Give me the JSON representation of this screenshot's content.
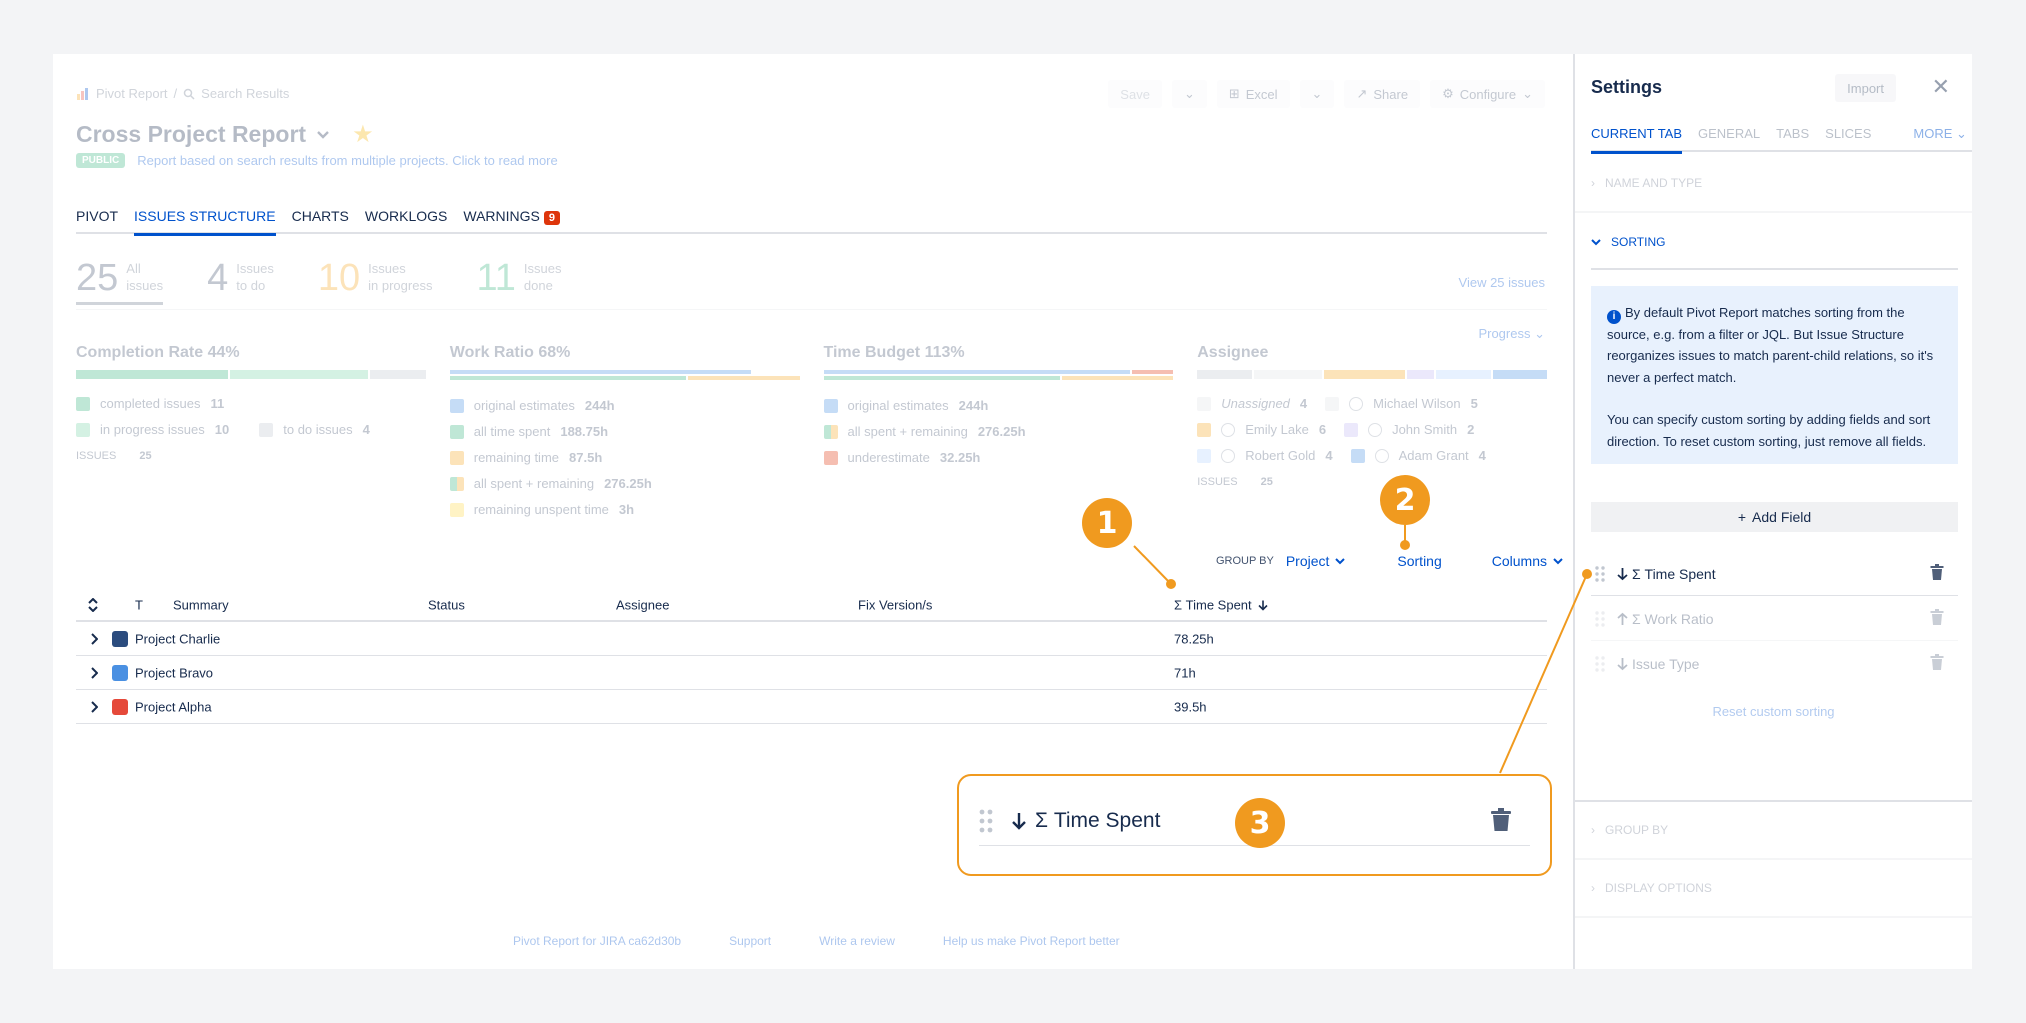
{
  "breadcrumb": {
    "root": "Pivot Report",
    "separator": "/",
    "current": "Search Results"
  },
  "toolbar": {
    "save": "Save",
    "excel": "Excel",
    "share": "Share",
    "configure": "Configure"
  },
  "report": {
    "title": "Cross Project Report",
    "badge": "PUBLIC",
    "description": "Report based on search results from multiple projects. Click to read more"
  },
  "tabs": [
    {
      "label": "PIVOT"
    },
    {
      "label": "ISSUES STRUCTURE"
    },
    {
      "label": "CHARTS"
    },
    {
      "label": "WORKLOGS"
    },
    {
      "label": "WARNINGS",
      "badge": "9"
    }
  ],
  "stats": [
    {
      "value": "25",
      "line1": "All",
      "line2": "issues"
    },
    {
      "value": "4",
      "line1": "Issues",
      "line2": "to do"
    },
    {
      "value": "10",
      "line1": "Issues",
      "line2": "in progress"
    },
    {
      "value": "11",
      "line1": "Issues",
      "line2": "done"
    }
  ],
  "view_issues": "View 25 issues",
  "progress_dropdown": "Progress",
  "metrics": {
    "completion": {
      "title": "Completion Rate",
      "pct": "44%",
      "completed_label": "completed issues",
      "completed": "11",
      "in_progress_label": "in progress issues",
      "in_progress": "10",
      "todo_label": "to do issues",
      "todo": "4",
      "issues_label": "ISSUES",
      "issues": "25"
    },
    "work_ratio": {
      "title": "Work Ratio",
      "pct": "68%",
      "orig_label": "original estimates",
      "orig": "244h",
      "spent_label": "all time spent",
      "spent": "188.75h",
      "remaining_label": "remaining time",
      "remaining": "87.5h",
      "all_label": "all spent + remaining",
      "all": "276.25h",
      "unspent_label": "remaining unspent time",
      "unspent": "3h"
    },
    "time_budget": {
      "title": "Time Budget",
      "pct": "113%",
      "orig_label": "original estimates",
      "orig": "244h",
      "all_label": "all spent + remaining",
      "all": "276.25h",
      "under_label": "underestimate",
      "under": "32.25h"
    },
    "assignee": {
      "title": "Assignee",
      "unassigned": "Unassigned",
      "unassigned_n": "4",
      "p1": "Michael Wilson",
      "p1_n": "5",
      "p2": "Emily Lake",
      "p2_n": "6",
      "p3": "John Smith",
      "p3_n": "2",
      "p4": "Robert Gold",
      "p4_n": "4",
      "p5": "Adam Grant",
      "p5_n": "4",
      "issues_label": "ISSUES",
      "issues": "25"
    }
  },
  "controls": {
    "group_by_label": "GROUP BY",
    "group_by_value": "Project",
    "sorting": "Sorting",
    "columns": "Columns"
  },
  "table": {
    "headers": {
      "t": "T",
      "summary": "Summary",
      "status": "Status",
      "assignee": "Assignee",
      "fix_version": "Fix Version/s",
      "time_spent": "Σ Time Spent"
    },
    "rows": [
      {
        "summary": "Project Charlie",
        "time_spent": "78.25h",
        "color": "#2b4c7e"
      },
      {
        "summary": "Project Bravo",
        "time_spent": "71h",
        "color": "#4a90e2"
      },
      {
        "summary": "Project Alpha",
        "time_spent": "39.5h",
        "color": "#e5493a"
      }
    ]
  },
  "footer": {
    "version": "Pivot Report for JIRA ca62d30b",
    "support": "Support",
    "review": "Write a review",
    "help": "Help us make Pivot Report better"
  },
  "zoom": {
    "label": "Σ Time Spent"
  },
  "callouts": {
    "c1": "1",
    "c2": "2",
    "c3": "3"
  },
  "settings": {
    "title": "Settings",
    "import": "Import",
    "tabs": {
      "current": "CURRENT TAB",
      "general": "GENERAL",
      "tabs": "TABS",
      "slices": "SLICES",
      "more": "MORE"
    },
    "sections": {
      "name_type": "NAME AND TYPE",
      "sorting": "SORTING",
      "group_by": "GROUP BY",
      "display": "DISPLAY OPTIONS"
    },
    "info_p1": "By default Pivot Report matches sorting from the source, e.g. from a filter or JQL. But Issue Structure reorganizes issues to match parent-child relations, so it's never a perfect match.",
    "info_p2": "You can specify custom sorting by adding fields and sort direction. To reset custom sorting, just remove all fields.",
    "add_field": "Add Field",
    "fields": [
      {
        "label": "Σ Time Spent"
      },
      {
        "label": "Σ Work Ratio"
      },
      {
        "label": "Issue Type"
      }
    ],
    "reset": "Reset custom sorting"
  },
  "colors": {
    "accent": "#0052cc",
    "callout": "#f09a1f",
    "danger": "#de350b"
  }
}
